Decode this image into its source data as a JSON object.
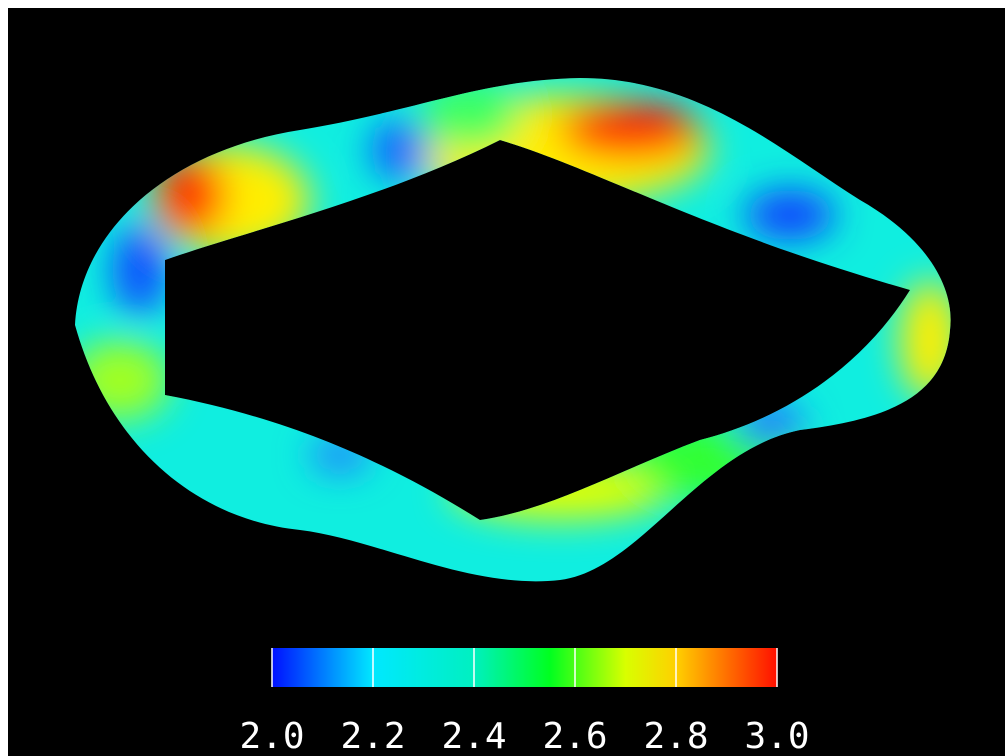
{
  "colorbar": {
    "range": [
      2.0,
      3.0
    ],
    "ticks": [
      {
        "value": 2.0,
        "label": "2.0"
      },
      {
        "value": 2.2,
        "label": "2.2"
      },
      {
        "value": 2.4,
        "label": "2.4"
      },
      {
        "value": 2.6,
        "label": "2.6"
      },
      {
        "value": 2.8,
        "label": "2.8"
      },
      {
        "value": 3.0,
        "label": "3.0"
      }
    ]
  }
}
